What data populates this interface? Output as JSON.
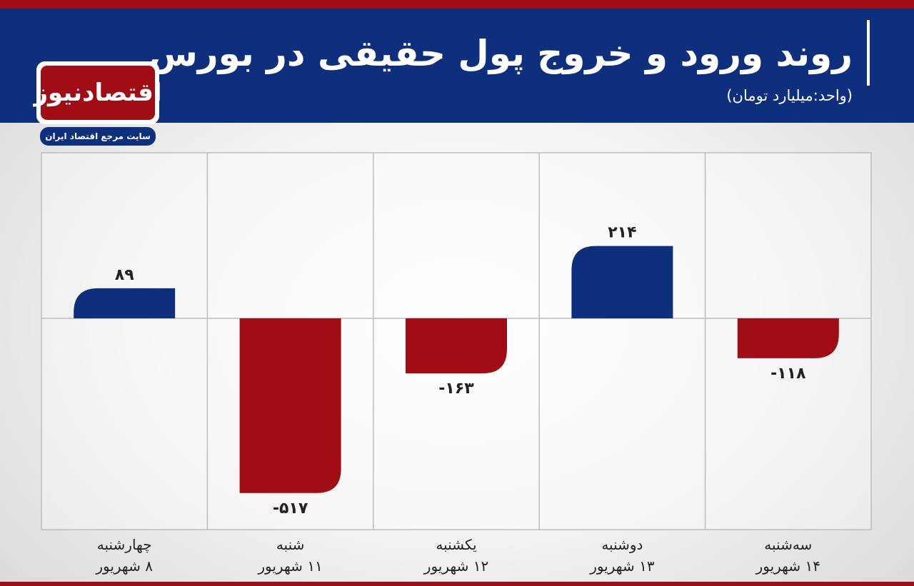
{
  "header": {
    "title": "روند ورود و خروج پول حقیقی در بورس",
    "unit": "(واحد:میلیارد تومان)"
  },
  "logo": {
    "name": "اقتصادنیوز",
    "slogan": "سایت مرجع اقتصاد ایران"
  },
  "colors": {
    "header_blue": "#0d2f7e",
    "accent_red": "#a10d14",
    "positive_bar": "#0d2f7e",
    "negative_bar": "#a10d14"
  },
  "chart_data": {
    "type": "bar",
    "title": "روند ورود و خروج پول حقیقی در بورس",
    "ylabel": "(واحد:میلیارد تومان)",
    "categories": [
      {
        "day": "چهارشنبه",
        "date": "۸ شهریور"
      },
      {
        "day": "شنبه",
        "date": "۱۱ شهریور"
      },
      {
        "day": "یکشنبه",
        "date": "۱۲ شهریور"
      },
      {
        "day": "دوشنبه",
        "date": "۱۳ شهریور"
      },
      {
        "day": "سه‌شنبه",
        "date": "۱۴ شهریور"
      }
    ],
    "values": [
      89,
      -517,
      -163,
      214,
      -118
    ],
    "value_labels": [
      "۸۹",
      "-۵۱۷",
      "-۱۶۳",
      "۲۱۴",
      "-۱۱۸"
    ],
    "ylim": [
      -620,
      490
    ],
    "grid": true,
    "legend": "none"
  }
}
